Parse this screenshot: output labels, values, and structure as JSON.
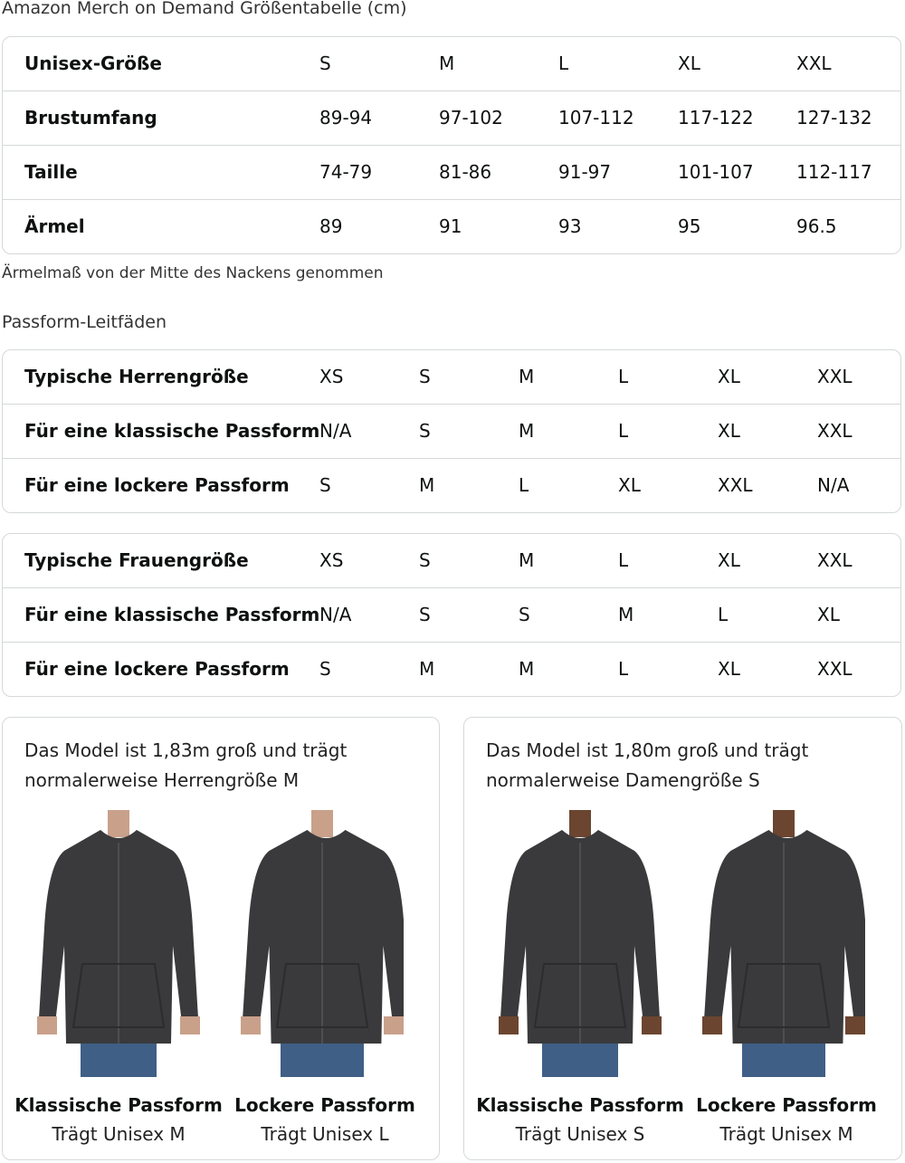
{
  "size_chart": {
    "title": "Amazon Merch on Demand Größentabelle (cm)",
    "rows": [
      [
        "Unisex-Größe",
        "S",
        "M",
        "L",
        "XL",
        "XXL"
      ],
      [
        "Brustumfang",
        "89-94",
        "97-102",
        "107-112",
        "117-122",
        "127-132"
      ],
      [
        "Taille",
        "74-79",
        "81-86",
        "91-97",
        "101-107",
        "112-117"
      ],
      [
        "Ärmel",
        "89",
        "91",
        "93",
        "95",
        "96.5"
      ]
    ],
    "note": "Ärmelmaß von der Mitte des Nackens genommen"
  },
  "fit_guides": {
    "title": "Passform-Leitfäden",
    "men": [
      [
        "Typische Herrengröße",
        "XS",
        "S",
        "M",
        "L",
        "XL",
        "XXL"
      ],
      [
        "Für eine klassische Passform",
        "N/A",
        "S",
        "M",
        "L",
        "XL",
        "XXL"
      ],
      [
        "Für eine lockere Passform",
        "S",
        "M",
        "L",
        "XL",
        "XXL",
        "N/A"
      ]
    ],
    "women": [
      [
        "Typische Frauengröße",
        "XS",
        "S",
        "M",
        "L",
        "XL",
        "XXL"
      ],
      [
        "Für eine klassische Passform",
        "N/A",
        "S",
        "S",
        "M",
        "L",
        "XL"
      ],
      [
        "Für eine lockere Passform",
        "S",
        "M",
        "M",
        "L",
        "XL",
        "XXL"
      ]
    ]
  },
  "models": [
    {
      "desc": "Das Model ist 1,83m groß und trägt normalerweise Herrengröße M",
      "skin": "#c9a08a",
      "photos": [
        {
          "title": "Klassische Passform",
          "subtitle": "Trägt Unisex M"
        },
        {
          "title": "Lockere Passform",
          "subtitle": "Trägt Unisex L"
        }
      ]
    },
    {
      "desc": "Das Model ist 1,80m groß und trägt normalerweise Damengröße S",
      "skin": "#6b4530",
      "photos": [
        {
          "title": "Klassische Passform",
          "subtitle": "Trägt Unisex S"
        },
        {
          "title": "Lockere Passform",
          "subtitle": "Trägt Unisex M"
        }
      ]
    }
  ],
  "colors": {
    "border": "#d5d9d9",
    "hoodie": "#3a3a3c",
    "jeans": "#3f5f86"
  }
}
